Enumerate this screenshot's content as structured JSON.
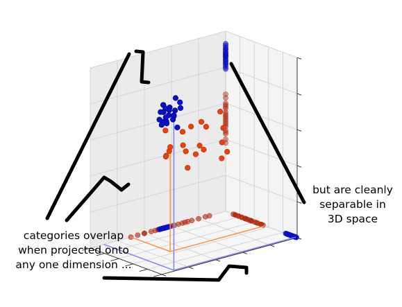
{
  "chart_data": {
    "type": "scatter",
    "projection": "3d",
    "grid": true,
    "axis_ticks_labeled": false,
    "colors": {
      "blue_category": "#0a10c8",
      "red_category": "#e8420e",
      "blue_guide": "#8080ff",
      "orange_guide": "#ff9040",
      "pane_left": "#ebebeb",
      "pane_right": "#f4f4f4",
      "pane_floor": "#f6f6f6",
      "gridline": "#cfcfcf"
    },
    "blue_points": [
      [
        9.0,
        9.8,
        8.6
      ],
      [
        9.1,
        9.4,
        9.0
      ],
      [
        8.9,
        9.6,
        8.5
      ],
      [
        9.2,
        9.0,
        8.9
      ],
      [
        8.6,
        9.2,
        8.7
      ],
      [
        9.3,
        8.9,
        9.1
      ],
      [
        8.8,
        8.7,
        8.4
      ],
      [
        9.4,
        9.5,
        8.3
      ],
      [
        8.5,
        9.7,
        9.2
      ],
      [
        9.0,
        8.8,
        8.0
      ],
      [
        8.7,
        9.1,
        8.2
      ],
      [
        9.5,
        9.3,
        8.8
      ],
      [
        8.4,
        8.9,
        9.3
      ],
      [
        9.6,
        9.8,
        8.6
      ],
      [
        9.2,
        8.6,
        8.1
      ],
      [
        8.8,
        9.9,
        7.9
      ],
      [
        9.7,
        9.1,
        8.4
      ],
      [
        8.3,
        9.4,
        8.8
      ],
      [
        9.1,
        8.5,
        9.0
      ],
      [
        9.8,
        9.6,
        8.2
      ],
      [
        8.6,
        8.4,
        8.6
      ],
      [
        9.4,
        8.7,
        8.7
      ]
    ],
    "red_points": [
      [
        2.5,
        2.0,
        5.5
      ],
      [
        3.5,
        3.0,
        4.8
      ],
      [
        4.5,
        2.5,
        5.7
      ],
      [
        2.0,
        4.0,
        4.3
      ],
      [
        5.0,
        3.5,
        5.2
      ],
      [
        3.0,
        1.5,
        4.0
      ],
      [
        4.0,
        4.5,
        4.9
      ],
      [
        5.5,
        2.0,
        5.9
      ],
      [
        6.0,
        3.0,
        4.7
      ],
      [
        1.5,
        2.5,
        5.3
      ],
      [
        3.8,
        3.8,
        6.3
      ],
      [
        2.8,
        4.8,
        5.1
      ],
      [
        6.5,
        4.0,
        5.0
      ],
      [
        4.8,
        1.2,
        4.5
      ],
      [
        7.0,
        5.5,
        5.8
      ],
      [
        5.2,
        5.0,
        6.5
      ],
      [
        1.2,
        1.5,
        6.0
      ],
      [
        6.0,
        5.8,
        5.4
      ],
      [
        3.2,
        5.5,
        4.4
      ],
      [
        4.5,
        3.2,
        3.8
      ]
    ],
    "guide_lines": [
      {
        "name": "blue",
        "point": [
          9.0,
          9.8,
          8.6
        ]
      },
      {
        "name": "orange",
        "point": [
          7.0,
          5.5,
          5.8
        ]
      }
    ],
    "annotations": [
      "categories overlap when projected onto any one dimension ...",
      "but are cleanly separable in 3D space"
    ]
  },
  "labels": {
    "left_1": "categories overlap",
    "left_2": "when projected onto",
    "left_3": "any one dimension ...",
    "right_1": "but are cleanly",
    "right_2": "separable in",
    "right_3": "3D space"
  }
}
